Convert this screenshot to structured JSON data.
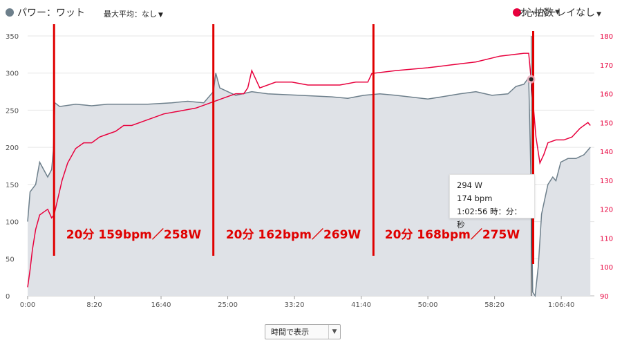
{
  "legend": {
    "power_label": "パワー：ワット",
    "power_color": "#6d7f8b",
    "max_average": "最大平均：なし",
    "hr_label": "心拍数",
    "hr_color": "#e8003d",
    "overlay": "オーバーレイなし"
  },
  "tooltip": {
    "power": "294 W",
    "hr": "174 bpm",
    "time": "1:02:56 時：分：秒"
  },
  "select": {
    "value": "時間で表示"
  },
  "chart_data": {
    "type": "line",
    "x_unit": "minutes",
    "x_ticks": [
      "0:00",
      "8:20",
      "16:40",
      "25:00",
      "33:20",
      "41:40",
      "50:00",
      "58:20",
      "1:06:40"
    ],
    "xlim": [
      0,
      70.8
    ],
    "ylim_left": [
      0,
      350
    ],
    "yticks_left": [
      "0",
      "50",
      "100",
      "150",
      "200",
      "250",
      "300",
      "350"
    ],
    "ylim_right": [
      90,
      180
    ],
    "yticks_right": [
      "90",
      "100",
      "110",
      "120",
      "130",
      "140",
      "150",
      "160",
      "170",
      "180"
    ],
    "power_series": {
      "x": [
        0,
        0.3,
        1,
        1.5,
        2,
        2.5,
        3,
        3.2,
        3.4,
        4,
        6,
        8,
        10,
        12,
        15,
        18,
        20,
        22,
        23.2,
        23.5,
        24,
        26,
        28,
        30,
        34,
        38,
        40,
        42,
        44,
        46,
        50,
        54,
        56,
        58,
        60,
        61,
        62,
        62.6,
        62.9,
        63.1,
        63.4,
        63.8,
        64.2,
        65,
        65.6,
        66,
        66.6,
        67.5,
        68.5,
        69.5,
        70.3
      ],
      "y": [
        100,
        140,
        150,
        180,
        170,
        160,
        170,
        195,
        260,
        255,
        258,
        256,
        258,
        258,
        258,
        260,
        262,
        260,
        275,
        300,
        280,
        270,
        275,
        272,
        270,
        268,
        266,
        270,
        272,
        270,
        265,
        272,
        275,
        270,
        272,
        282,
        285,
        294,
        150,
        5,
        0,
        40,
        110,
        150,
        160,
        155,
        180,
        185,
        185,
        190,
        200
      ]
    },
    "hr_series": {
      "x": [
        0,
        0.3,
        0.6,
        1,
        1.5,
        2,
        2.5,
        3,
        3.3,
        3.8,
        4.3,
        5,
        6,
        7,
        8,
        9,
        10,
        11,
        12,
        13,
        15,
        17,
        19,
        21,
        23,
        25,
        26,
        27,
        27.5,
        28,
        29,
        31,
        33,
        35,
        37,
        39,
        41,
        42.5,
        43,
        46,
        50,
        53,
        56,
        59,
        62,
        62.6,
        62.9,
        63.5,
        64,
        64.5,
        65,
        66,
        67,
        68,
        69,
        70,
        70.3
      ],
      "y": [
        93,
        99,
        106,
        113,
        118,
        119,
        120,
        117,
        118,
        124,
        130,
        136,
        141,
        143,
        143,
        145,
        146,
        147,
        149,
        149,
        151,
        153,
        154,
        155,
        157,
        159,
        160,
        160,
        162,
        168,
        162,
        164,
        164,
        163,
        163,
        163,
        164,
        164,
        167,
        168,
        169,
        170,
        171,
        173,
        174,
        174,
        165,
        145,
        136,
        139,
        143,
        144,
        144,
        145,
        148,
        150,
        149
      ]
    },
    "segments": [
      {
        "x": 3.3,
        "label": "20分 159bpm／258W"
      },
      {
        "x": 23.2,
        "label": "20分 162bpm／269W"
      },
      {
        "x": 43.2,
        "label": "20分 168bpm／275W"
      }
    ],
    "marker_x": 62.9
  }
}
